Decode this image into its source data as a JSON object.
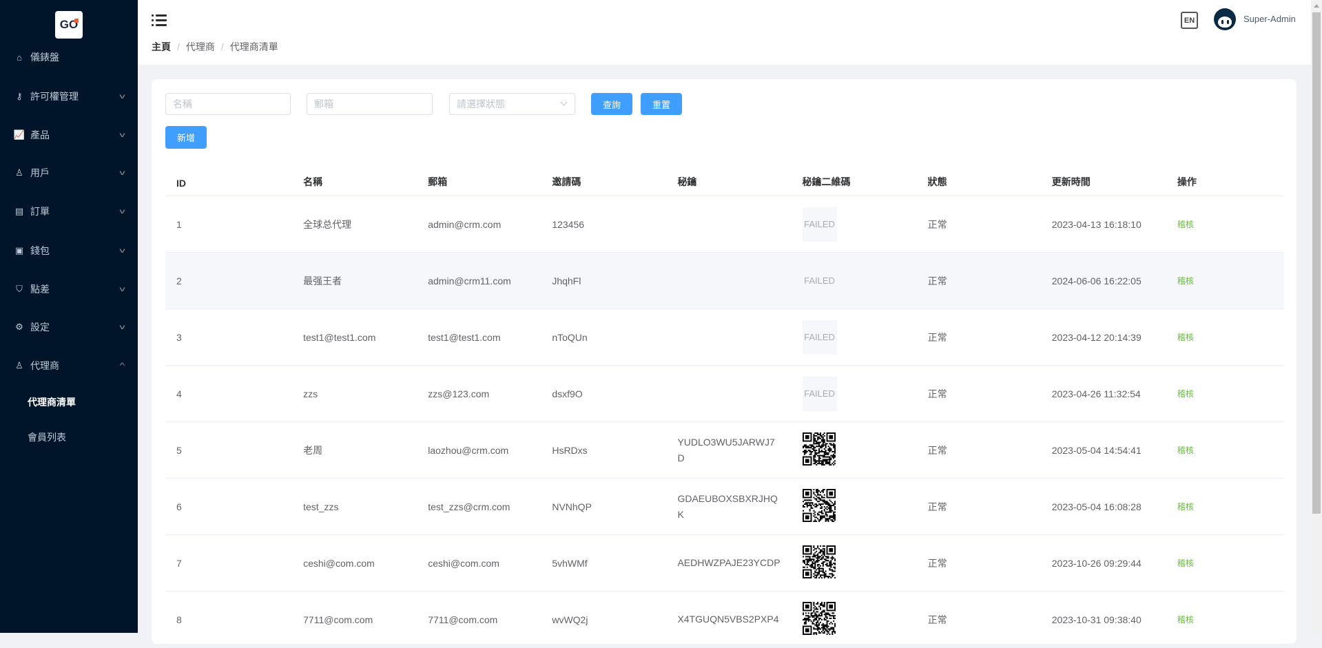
{
  "logo": {
    "text_g": "G",
    "text_o": "O"
  },
  "sidebar": {
    "items": [
      {
        "label": "儀錶盤",
        "icon": "home-icon",
        "expandable": false
      },
      {
        "label": "許可權管理",
        "icon": "user-key-icon",
        "expandable": true
      },
      {
        "label": "產品",
        "icon": "chart-icon",
        "expandable": true
      },
      {
        "label": "用戶",
        "icon": "user-icon",
        "expandable": true
      },
      {
        "label": "訂單",
        "icon": "document-icon",
        "expandable": true
      },
      {
        "label": "錢包",
        "icon": "wallet-icon",
        "expandable": true
      },
      {
        "label": "點差",
        "icon": "shield-icon",
        "expandable": true
      },
      {
        "label": "設定",
        "icon": "gear-icon",
        "expandable": true
      },
      {
        "label": "代理商",
        "icon": "agent-icon",
        "expandable": true,
        "expanded": true
      }
    ],
    "sub_items": [
      {
        "label": "代理商清單",
        "active": true
      },
      {
        "label": "會員列表",
        "active": false
      }
    ]
  },
  "header": {
    "breadcrumb": [
      "主頁",
      "代理商",
      "代理商清單"
    ],
    "lang": "EN",
    "username": "Super-Admin"
  },
  "filters": {
    "name_placeholder": "名稱",
    "email_placeholder": "郵箱",
    "status_placeholder": "請選擇狀態",
    "search_label": "查詢",
    "reset_label": "重置",
    "add_label": "新增"
  },
  "table": {
    "columns": [
      "ID",
      "名稱",
      "郵箱",
      "邀請碼",
      "秘鑰",
      "秘鑰二維碼",
      "狀態",
      "更新時間",
      "操作"
    ],
    "rows": [
      {
        "id": "1",
        "name": "全球总代理",
        "email": "admin@crm.com",
        "invite": "123456",
        "secret": "",
        "qr": "FAILED",
        "status": "正常",
        "updated": "2023-04-13 16:18:10",
        "action": "稽核"
      },
      {
        "id": "2",
        "name": "最强王者",
        "email": "admin@crm11.com",
        "invite": "JhqhFl",
        "secret": "",
        "qr": "FAILED",
        "status": "正常",
        "updated": "2024-06-06 16:22:05",
        "action": "稽核"
      },
      {
        "id": "3",
        "name": "test1@test1.com",
        "email": "test1@test1.com",
        "invite": "nToQUn",
        "secret": "",
        "qr": "FAILED",
        "status": "正常",
        "updated": "2023-04-12 20:14:39",
        "action": "稽核"
      },
      {
        "id": "4",
        "name": "zzs",
        "email": "zzs@123.com",
        "invite": "dsxf9O",
        "secret": "",
        "qr": "FAILED",
        "status": "正常",
        "updated": "2023-04-26 11:32:54",
        "action": "稽核"
      },
      {
        "id": "5",
        "name": "老周",
        "email": "laozhou@crm.com",
        "invite": "HsRDxs",
        "secret": "YUDLO3WU5JARWJ7D",
        "qr": "",
        "status": "正常",
        "updated": "2023-05-04 14:54:41",
        "action": "稽核"
      },
      {
        "id": "6",
        "name": "test_zzs",
        "email": "test_zzs@crm.com",
        "invite": "NVNhQP",
        "secret": "GDAEUBOXSBXRJHQK",
        "qr": "",
        "status": "正常",
        "updated": "2023-05-04 16:08:28",
        "action": "稽核"
      },
      {
        "id": "7",
        "name": "ceshi@com.com",
        "email": "ceshi@com.com",
        "invite": "5vhWMf",
        "secret": "AEDHWZPAJE23YCDP",
        "qr": "",
        "status": "正常",
        "updated": "2023-10-26 09:29:44",
        "action": "稽核"
      },
      {
        "id": "8",
        "name": "7711@com.com",
        "email": "7711@com.com",
        "invite": "wvWQ2j",
        "secret": "X4TGUQN5VBS2PXP4",
        "qr": "",
        "status": "正常",
        "updated": "2023-10-31 09:38:40",
        "action": "稽核"
      }
    ]
  },
  "colors": {
    "primary": "#409eff",
    "sidebar_bg": "#001529",
    "success": "#67c23a"
  }
}
